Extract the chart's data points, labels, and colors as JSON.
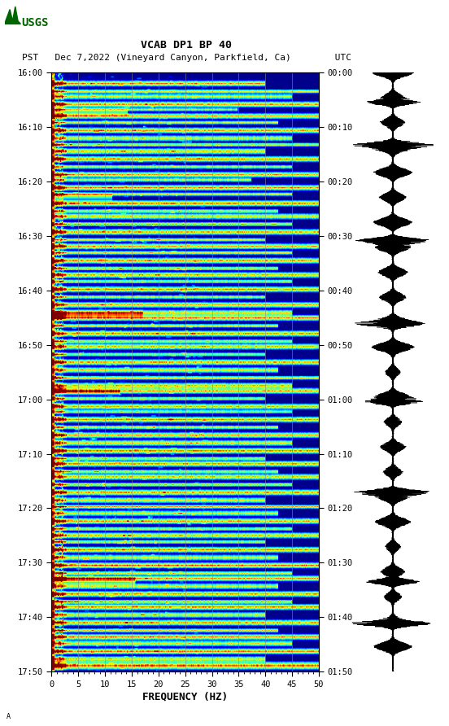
{
  "title_line1": "VCAB DP1 BP 40",
  "title_line2": "PST   Dec 7,2022 (Vineyard Canyon, Parkfield, Ca)        UTC",
  "xlabel": "FREQUENCY (HZ)",
  "freq_min": 0,
  "freq_max": 50,
  "pst_ticks": [
    "16:00",
    "16:10",
    "16:20",
    "16:30",
    "16:40",
    "16:50",
    "17:00",
    "17:10",
    "17:20",
    "17:30",
    "17:40",
    "17:50"
  ],
  "utc_ticks": [
    "00:00",
    "00:10",
    "00:20",
    "00:30",
    "00:40",
    "00:50",
    "01:00",
    "01:10",
    "01:20",
    "01:30",
    "01:40",
    "01:50"
  ],
  "freq_ticks": [
    0,
    5,
    10,
    15,
    20,
    25,
    30,
    35,
    40,
    45,
    50
  ],
  "grid_freqs": [
    5,
    10,
    15,
    20,
    25,
    30,
    35,
    40,
    45
  ],
  "background_color": "#ffffff",
  "colormap": "jet",
  "usgs_color": "#006400"
}
